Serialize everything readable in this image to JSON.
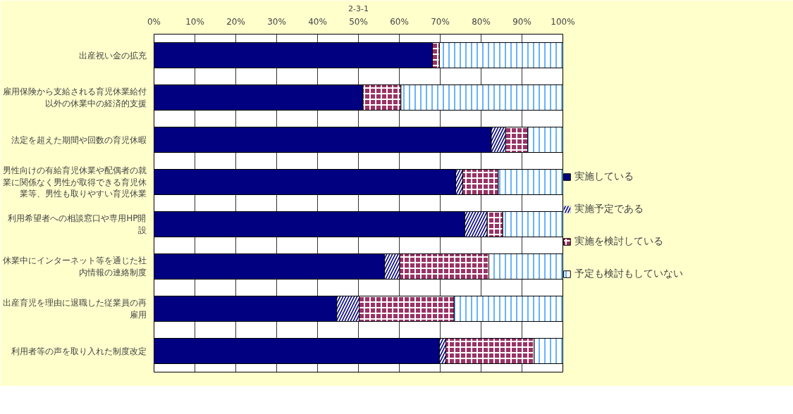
{
  "chart_data": {
    "type": "bar",
    "orientation": "horizontal",
    "stacked": true,
    "title": "2-3-1",
    "categories": [
      "出産祝い金の拡充",
      "雇用保険から支給される育児休業給付以外の休業中の経済的支援",
      "法定を超えた期間や回数の育児休暇",
      "男性向けの有給育児休業や配偶者の就業に関係なく男性が取得できる育児休業等、男性も取りやすい育児休業",
      "利用希望者への相談窓口や専用HP開設",
      "休業中にインターネット等を通じた社内情報の連絡制度",
      "出産育児を理由に退職した従業員の再雇用",
      "利用者等の声を取り入れた制度改定"
    ],
    "series": [
      {
        "name": "実施している",
        "color": "#000080",
        "values": [
          68.1,
          51.1,
          82.5,
          73.8,
          76.0,
          56.4,
          44.7,
          69.8
        ]
      },
      {
        "name": "実施予定である",
        "color": "#000080",
        "values": [
          0,
          0,
          3.5,
          1.7,
          5.5,
          3.7,
          5.5,
          1.6
        ]
      },
      {
        "name": "実施を検討している",
        "color": "#993366",
        "values": [
          1.7,
          9.3,
          5.4,
          8.7,
          3.8,
          21.8,
          23.2,
          21.6
        ]
      },
      {
        "name": "予定も検討もしていない",
        "color": "#ffffff",
        "values": [
          30.2,
          39.6,
          8.6,
          15.8,
          14.7,
          18.1,
          26.6,
          7.0
        ]
      }
    ],
    "xlim": [
      0,
      100
    ],
    "xticks": [
      {
        "value": 0,
        "label": "0%"
      },
      {
        "value": 10,
        "label": "10%"
      },
      {
        "value": 20,
        "label": "20%"
      },
      {
        "value": 30,
        "label": "30%"
      },
      {
        "value": 40,
        "label": "40%"
      },
      {
        "value": 50,
        "label": "50%"
      },
      {
        "value": 60,
        "label": "60%"
      },
      {
        "value": 70,
        "label": "70%"
      },
      {
        "value": 80,
        "label": "80%"
      },
      {
        "value": 90,
        "label": "90%"
      },
      {
        "value": 100,
        "label": "100%"
      }
    ],
    "grid": "x",
    "legend": "right"
  }
}
